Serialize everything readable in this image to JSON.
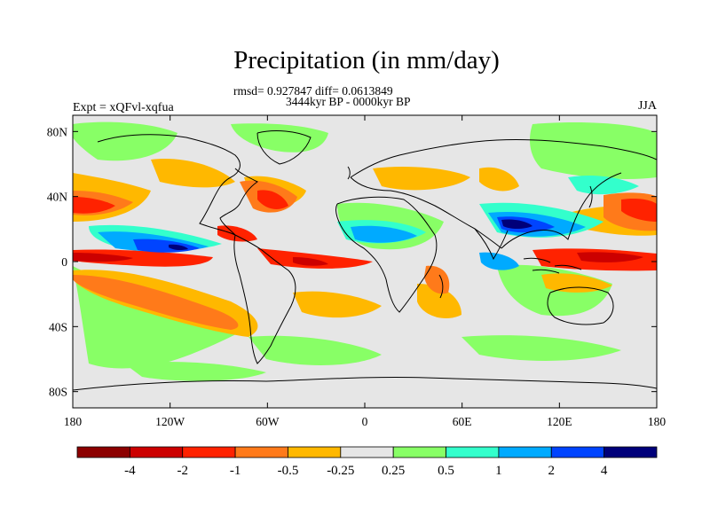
{
  "title": "Precipitation (in mm/day)",
  "stats_line": "rmsd= 0.927847 diff= 0.0613849",
  "period_line": "3444kyr BP - 0000kyr BP",
  "experiment": "Expt = xQFvl-xqfua",
  "season": "JJA",
  "colors": {
    "background_land": "#e6e6e6",
    "coastline": "#000000"
  },
  "map": {
    "y_ticks": [
      {
        "label": "80N",
        "lat": 80
      },
      {
        "label": "40N",
        "lat": 40
      },
      {
        "label": "0",
        "lat": 0
      },
      {
        "label": "40S",
        "lat": -40
      },
      {
        "label": "80S",
        "lat": -80
      }
    ],
    "x_ticks": [
      {
        "label": "180",
        "lon": -180
      },
      {
        "label": "120W",
        "lon": -120
      },
      {
        "label": "60W",
        "lon": -60
      },
      {
        "label": "0",
        "lon": 0
      },
      {
        "label": "60E",
        "lon": 60
      },
      {
        "label": "120E",
        "lon": 120
      },
      {
        "label": "180",
        "lon": 180
      }
    ]
  },
  "colorbar": {
    "colors": [
      "#8c0000",
      "#cc0000",
      "#ff2200",
      "#ff7a1a",
      "#ffb800",
      "#e6e6e6",
      "#88ff66",
      "#33ffcc",
      "#00aaff",
      "#0044ff",
      "#00007a"
    ],
    "labels": [
      "-4",
      "-2",
      "-1",
      "-0.5",
      "-0.25",
      "0.25",
      "0.5",
      "1",
      "2",
      "4"
    ]
  }
}
